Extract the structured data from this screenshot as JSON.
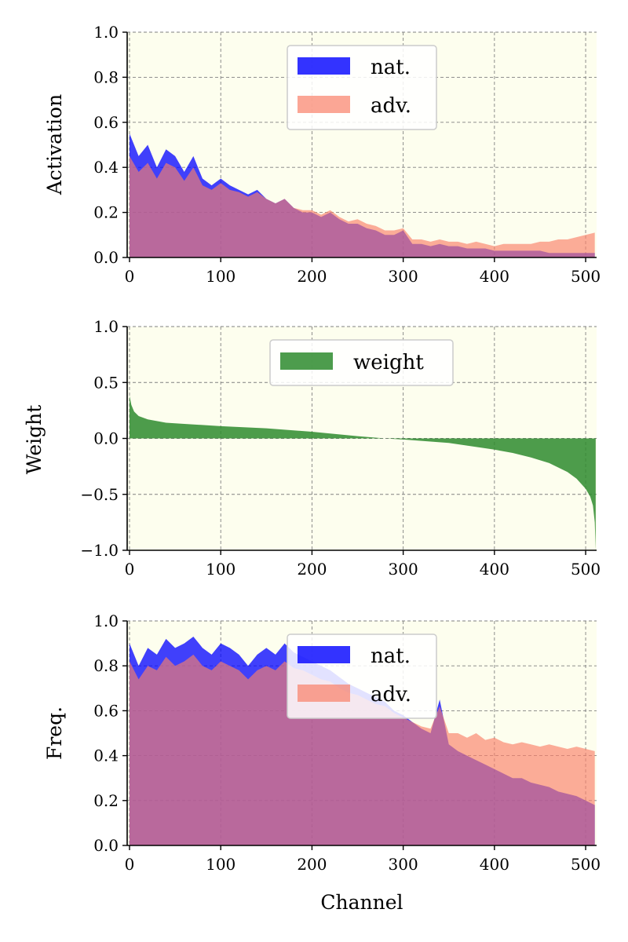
{
  "chart_data": [
    {
      "type": "area",
      "ylabel": "Activation",
      "xlabel": "",
      "xlim": [
        0,
        512
      ],
      "ylim": [
        0,
        1.0
      ],
      "xticks": [
        "0",
        "100",
        "200",
        "300",
        "400",
        "500"
      ],
      "yticks": [
        "0.0",
        "0.2",
        "0.4",
        "0.6",
        "0.8",
        "1.0"
      ],
      "grid": true,
      "legend_position": "top-center",
      "legend": [
        "nat.",
        "adv."
      ],
      "series": [
        {
          "name": "nat.",
          "color": "#0000ff",
          "x": [
            0,
            10,
            20,
            30,
            40,
            50,
            60,
            70,
            80,
            90,
            100,
            110,
            120,
            130,
            140,
            150,
            160,
            170,
            180,
            190,
            200,
            210,
            220,
            230,
            240,
            250,
            260,
            270,
            280,
            290,
            300,
            310,
            320,
            330,
            340,
            350,
            360,
            370,
            380,
            390,
            400,
            410,
            420,
            430,
            440,
            450,
            460,
            470,
            480,
            490,
            500,
            510
          ],
          "values": [
            0.55,
            0.45,
            0.5,
            0.4,
            0.48,
            0.45,
            0.38,
            0.45,
            0.35,
            0.32,
            0.35,
            0.32,
            0.3,
            0.28,
            0.3,
            0.26,
            0.24,
            0.26,
            0.22,
            0.2,
            0.2,
            0.18,
            0.2,
            0.17,
            0.15,
            0.15,
            0.13,
            0.12,
            0.1,
            0.1,
            0.12,
            0.06,
            0.06,
            0.05,
            0.06,
            0.05,
            0.05,
            0.04,
            0.04,
            0.04,
            0.03,
            0.03,
            0.03,
            0.03,
            0.03,
            0.03,
            0.02,
            0.02,
            0.02,
            0.02,
            0.02,
            0.02
          ]
        },
        {
          "name": "adv.",
          "color": "#fa8068",
          "x": [
            0,
            10,
            20,
            30,
            40,
            50,
            60,
            70,
            80,
            90,
            100,
            110,
            120,
            130,
            140,
            150,
            160,
            170,
            180,
            190,
            200,
            210,
            220,
            230,
            240,
            250,
            260,
            270,
            280,
            290,
            300,
            310,
            320,
            330,
            340,
            350,
            360,
            370,
            380,
            390,
            400,
            410,
            420,
            430,
            440,
            450,
            460,
            470,
            480,
            490,
            500,
            510
          ],
          "values": [
            0.45,
            0.38,
            0.42,
            0.35,
            0.42,
            0.4,
            0.34,
            0.4,
            0.32,
            0.3,
            0.33,
            0.3,
            0.29,
            0.27,
            0.29,
            0.26,
            0.24,
            0.26,
            0.22,
            0.21,
            0.21,
            0.19,
            0.21,
            0.18,
            0.16,
            0.17,
            0.15,
            0.14,
            0.12,
            0.12,
            0.13,
            0.08,
            0.08,
            0.07,
            0.08,
            0.07,
            0.07,
            0.06,
            0.07,
            0.06,
            0.05,
            0.06,
            0.06,
            0.06,
            0.06,
            0.07,
            0.07,
            0.08,
            0.08,
            0.09,
            0.1,
            0.11
          ]
        }
      ]
    },
    {
      "type": "area",
      "ylabel": "Weight",
      "xlabel": "",
      "xlim": [
        0,
        512
      ],
      "ylim": [
        -1.0,
        1.0
      ],
      "xticks": [
        "0",
        "100",
        "200",
        "300",
        "400",
        "500"
      ],
      "yticks": [
        "−1.0",
        "−0.5",
        "0.0",
        "0.5",
        "1.0"
      ],
      "ytick_values": [
        -1.0,
        -0.5,
        0.0,
        0.5,
        1.0
      ],
      "grid": true,
      "legend_position": "top-center",
      "legend": [
        "weight"
      ],
      "series": [
        {
          "name": "weight",
          "color": "#2e8b2e",
          "x": [
            0,
            2,
            5,
            10,
            20,
            40,
            60,
            80,
            100,
            150,
            200,
            250,
            280,
            300,
            350,
            400,
            420,
            440,
            460,
            480,
            490,
            500,
            505,
            508,
            510,
            511
          ],
          "values": [
            0.38,
            0.3,
            0.24,
            0.2,
            0.17,
            0.14,
            0.13,
            0.12,
            0.11,
            0.09,
            0.06,
            0.02,
            0.0,
            -0.01,
            -0.04,
            -0.1,
            -0.13,
            -0.17,
            -0.22,
            -0.3,
            -0.36,
            -0.45,
            -0.52,
            -0.6,
            -0.75,
            -1.0
          ]
        }
      ]
    },
    {
      "type": "area",
      "ylabel": "Freq.",
      "xlabel": "Channel",
      "xlim": [
        0,
        512
      ],
      "ylim": [
        0,
        1.0
      ],
      "xticks": [
        "0",
        "100",
        "200",
        "300",
        "400",
        "500"
      ],
      "yticks": [
        "0.0",
        "0.2",
        "0.4",
        "0.6",
        "0.8",
        "1.0"
      ],
      "grid": true,
      "legend_position": "top-center",
      "legend": [
        "nat.",
        "adv."
      ],
      "series": [
        {
          "name": "nat.",
          "color": "#0000ff",
          "x": [
            0,
            10,
            20,
            30,
            40,
            50,
            60,
            70,
            80,
            90,
            100,
            110,
            120,
            130,
            140,
            150,
            160,
            170,
            180,
            190,
            200,
            210,
            220,
            230,
            240,
            250,
            260,
            270,
            280,
            290,
            300,
            310,
            320,
            330,
            340,
            350,
            360,
            370,
            380,
            390,
            400,
            410,
            420,
            430,
            440,
            450,
            460,
            470,
            480,
            490,
            500,
            510
          ],
          "values": [
            0.9,
            0.8,
            0.88,
            0.85,
            0.92,
            0.88,
            0.9,
            0.93,
            0.88,
            0.85,
            0.9,
            0.88,
            0.85,
            0.8,
            0.85,
            0.88,
            0.85,
            0.9,
            0.86,
            0.84,
            0.82,
            0.8,
            0.78,
            0.75,
            0.72,
            0.7,
            0.68,
            0.66,
            0.64,
            0.6,
            0.58,
            0.55,
            0.52,
            0.5,
            0.65,
            0.45,
            0.42,
            0.4,
            0.38,
            0.36,
            0.34,
            0.32,
            0.3,
            0.3,
            0.28,
            0.27,
            0.26,
            0.24,
            0.23,
            0.22,
            0.2,
            0.18
          ]
        },
        {
          "name": "adv.",
          "color": "#fa8068",
          "x": [
            0,
            10,
            20,
            30,
            40,
            50,
            60,
            70,
            80,
            90,
            100,
            110,
            120,
            130,
            140,
            150,
            160,
            170,
            180,
            190,
            200,
            210,
            220,
            230,
            240,
            250,
            260,
            270,
            280,
            290,
            300,
            310,
            320,
            330,
            340,
            350,
            360,
            370,
            380,
            390,
            400,
            410,
            420,
            430,
            440,
            450,
            460,
            470,
            480,
            490,
            500,
            510
          ],
          "values": [
            0.82,
            0.74,
            0.8,
            0.78,
            0.84,
            0.8,
            0.82,
            0.85,
            0.8,
            0.78,
            0.82,
            0.8,
            0.78,
            0.74,
            0.78,
            0.8,
            0.78,
            0.82,
            0.79,
            0.78,
            0.76,
            0.74,
            0.73,
            0.7,
            0.68,
            0.67,
            0.65,
            0.63,
            0.62,
            0.59,
            0.57,
            0.55,
            0.53,
            0.52,
            0.62,
            0.5,
            0.5,
            0.48,
            0.5,
            0.47,
            0.48,
            0.46,
            0.45,
            0.46,
            0.45,
            0.44,
            0.45,
            0.44,
            0.43,
            0.44,
            0.43,
            0.42
          ]
        }
      ]
    }
  ]
}
